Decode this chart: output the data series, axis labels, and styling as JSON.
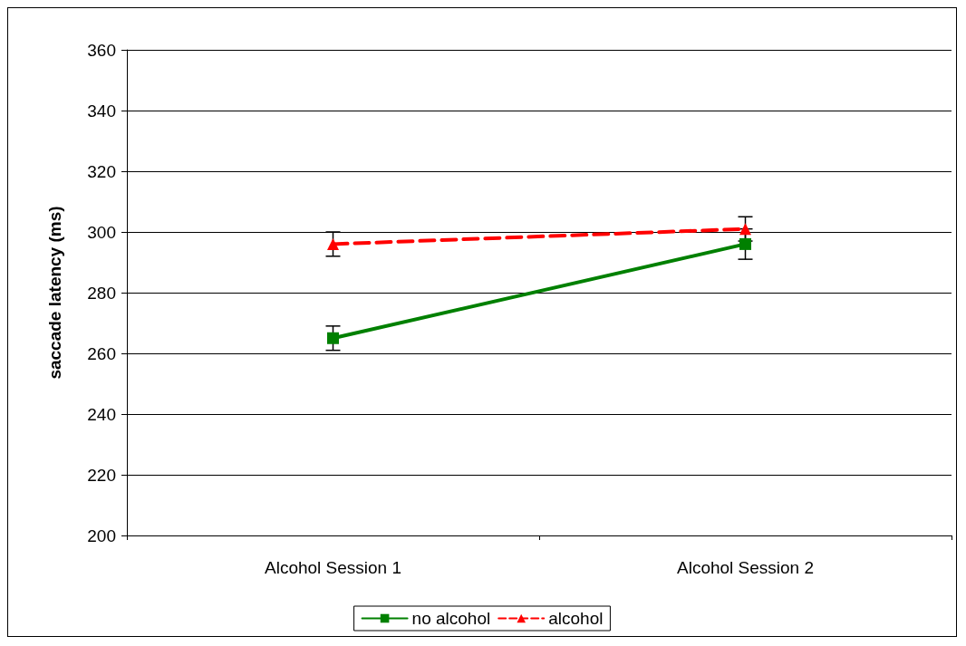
{
  "chart_data": {
    "type": "line",
    "ylabel": "saccade latency (ms)",
    "categories": [
      "Alcohol Session 1",
      "Alcohol Session 2"
    ],
    "series": [
      {
        "name": "no alcohol",
        "color": "#008000",
        "values": [
          265,
          296
        ],
        "errors": [
          4,
          5
        ],
        "marker": "square",
        "line_style": "solid"
      },
      {
        "name": "alcohol",
        "color": "#ff0000",
        "values": [
          296,
          301
        ],
        "errors": [
          4,
          4
        ],
        "marker": "triangle",
        "line_style": "dashed"
      }
    ],
    "ylim": [
      200,
      360
    ],
    "yticks": [
      200,
      220,
      240,
      260,
      280,
      300,
      320,
      340,
      360
    ],
    "grid": "y",
    "legend": "bottom"
  }
}
